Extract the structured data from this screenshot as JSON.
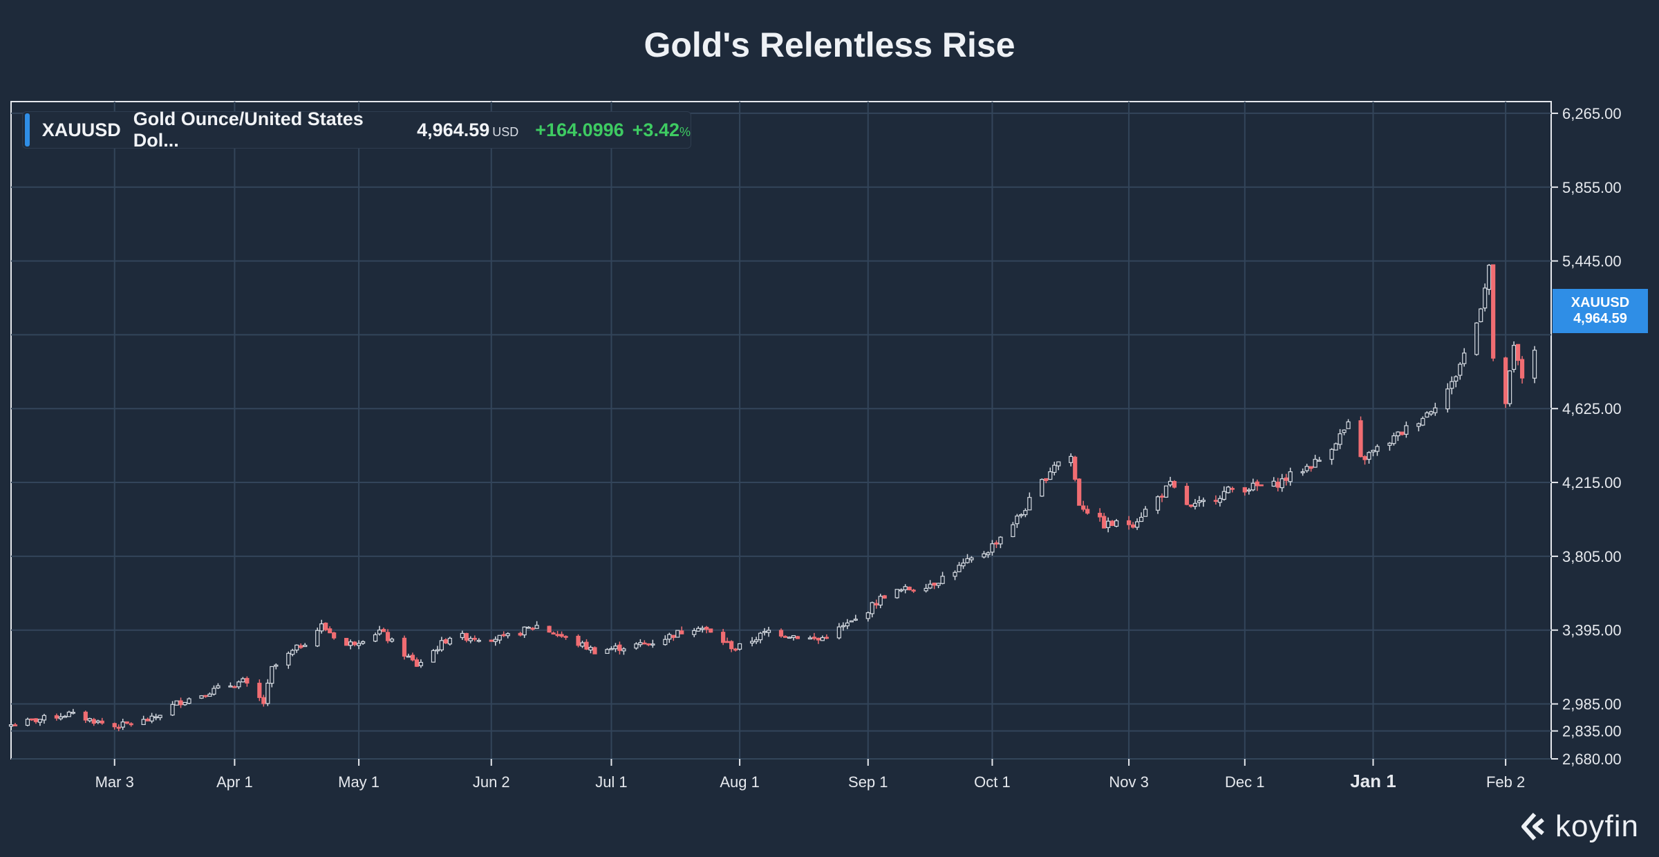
{
  "title": "Gold's Relentless Rise",
  "legend": {
    "ticker": "XAUUSD",
    "name": "Gold Ounce/United States Dol...",
    "price": "4,964.59",
    "currency": "USD",
    "change": "+164.0996",
    "change_pct": "+3.42",
    "pct_sign": "%"
  },
  "price_tag": {
    "ticker": "XAUUSD",
    "value": "4,964.59"
  },
  "logo": {
    "text": "koyfin",
    "icon": "koyfin-logo-icon"
  },
  "colors": {
    "background": "#1e2a3a",
    "grid": "#33455a",
    "up_candle_border": "#d6dbe2",
    "down_candle": "#f06d72",
    "accent": "#2f8ee6",
    "positive": "#3ecb62"
  },
  "chart_data": {
    "type": "candlestick",
    "title": "Gold's Relentless Rise",
    "series_name": "XAUUSD",
    "y_axis": {
      "position": "right",
      "ticks": [
        2680,
        2835,
        2985,
        3395,
        3805,
        4215,
        4625,
        5445,
        5855,
        6265
      ],
      "tick_labels": [
        "2,680.00",
        "2,835.00",
        "2,985.00",
        "3,395.00",
        "3,805.00",
        "4,215.00",
        "4,625.00",
        "5,445.00",
        "5,855.00",
        "6,265.00"
      ],
      "grid_levels": [
        2680,
        2835,
        2985,
        3395,
        3805,
        4215,
        4625,
        5035,
        5445,
        5855,
        6265
      ],
      "range": [
        2680,
        6330
      ]
    },
    "x_axis": {
      "range": [
        "2025-02-06",
        "2026-02-13"
      ],
      "ticks": [
        {
          "date": "2025-03-03",
          "label": "Mar 3",
          "bold": false
        },
        {
          "date": "2025-04-01",
          "label": "Apr 1",
          "bold": false
        },
        {
          "date": "2025-05-01",
          "label": "May 1",
          "bold": false
        },
        {
          "date": "2025-06-02",
          "label": "Jun 2",
          "bold": false
        },
        {
          "date": "2025-07-01",
          "label": "Jul 1",
          "bold": false
        },
        {
          "date": "2025-08-01",
          "label": "Aug 1",
          "bold": false
        },
        {
          "date": "2025-09-01",
          "label": "Sep 1",
          "bold": false
        },
        {
          "date": "2025-10-01",
          "label": "Oct 1",
          "bold": false
        },
        {
          "date": "2025-11-03",
          "label": "Nov 3",
          "bold": false
        },
        {
          "date": "2025-12-01",
          "label": "Dec 1",
          "bold": false
        },
        {
          "date": "2026-01-01",
          "label": "Jan 1",
          "bold": true
        },
        {
          "date": "2026-02-02",
          "label": "Feb 2",
          "bold": false
        }
      ]
    },
    "price_path": [
      [
        "2025-02-06",
        2870
      ],
      [
        "2025-02-20",
        2930
      ],
      [
        "2025-03-03",
        2860
      ],
      [
        "2025-03-12",
        2900
      ],
      [
        "2025-03-18",
        2990
      ],
      [
        "2025-03-28",
        3070
      ],
      [
        "2025-04-03",
        3110
      ],
      [
        "2025-04-08",
        2990
      ],
      [
        "2025-04-10",
        3180
      ],
      [
        "2025-04-18",
        3330
      ],
      [
        "2025-04-22",
        3420
      ],
      [
        "2025-04-28",
        3310
      ],
      [
        "2025-05-06",
        3390
      ],
      [
        "2025-05-15",
        3200
      ],
      [
        "2025-05-23",
        3360
      ],
      [
        "2025-06-05",
        3350
      ],
      [
        "2025-06-13",
        3420
      ],
      [
        "2025-06-27",
        3280
      ],
      [
        "2025-07-10",
        3320
      ],
      [
        "2025-07-22",
        3420
      ],
      [
        "2025-07-31",
        3290
      ],
      [
        "2025-08-08",
        3390
      ],
      [
        "2025-08-20",
        3340
      ],
      [
        "2025-08-29",
        3450
      ],
      [
        "2025-09-05",
        3590
      ],
      [
        "2025-09-17",
        3660
      ],
      [
        "2025-09-30",
        3840
      ],
      [
        "2025-10-08",
        4040
      ],
      [
        "2025-10-16",
        4320
      ],
      [
        "2025-10-20",
        4360
      ],
      [
        "2025-10-22",
        4100
      ],
      [
        "2025-10-28",
        3980
      ],
      [
        "2025-11-04",
        3990
      ],
      [
        "2025-11-13",
        4200
      ],
      [
        "2025-11-18",
        4070
      ],
      [
        "2025-11-28",
        4180
      ],
      [
        "2025-12-08",
        4200
      ],
      [
        "2025-12-19",
        4340
      ],
      [
        "2025-12-26",
        4530
      ],
      [
        "2025-12-29",
        4340
      ],
      [
        "2026-01-06",
        4460
      ],
      [
        "2026-01-14",
        4600
      ],
      [
        "2026-01-20",
        4760
      ],
      [
        "2026-01-26",
        5100
      ],
      [
        "2026-01-29",
        5420
      ],
      [
        "2026-01-30",
        4880
      ],
      [
        "2026-02-02",
        4660
      ],
      [
        "2026-02-04",
        4960
      ],
      [
        "2026-02-06",
        4800
      ],
      [
        "2026-02-09",
        4964.59
      ]
    ]
  }
}
